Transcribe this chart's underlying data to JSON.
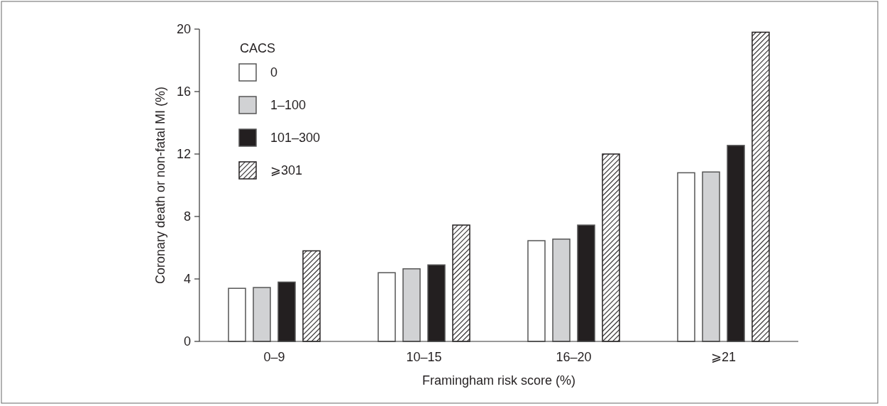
{
  "chart_data": {
    "type": "bar",
    "xlabel": "Framingham risk score (%)",
    "ylabel": "Coronary death or non-fatal MI (%)",
    "legend_title": "CACS",
    "legend": "top left",
    "categories": [
      "0–9",
      "10–15",
      "16–20",
      "⩾21"
    ],
    "series": [
      {
        "name": "0",
        "color": "#ffffff",
        "values": [
          3.4,
          4.4,
          6.45,
          10.8
        ]
      },
      {
        "name": "1–100",
        "color": "#d1d2d4",
        "values": [
          3.45,
          4.65,
          6.55,
          10.85
        ]
      },
      {
        "name": "101–300",
        "color": "#231f20",
        "values": [
          3.8,
          4.9,
          7.45,
          12.55
        ]
      },
      {
        "name": "⩾301",
        "color": "#231f20",
        "values": [
          5.8,
          7.45,
          12.0,
          19.8
        ]
      }
    ],
    "ylim": [
      0,
      20
    ],
    "yticks": [
      0,
      4,
      8,
      12,
      16,
      20
    ],
    "grid": false
  }
}
